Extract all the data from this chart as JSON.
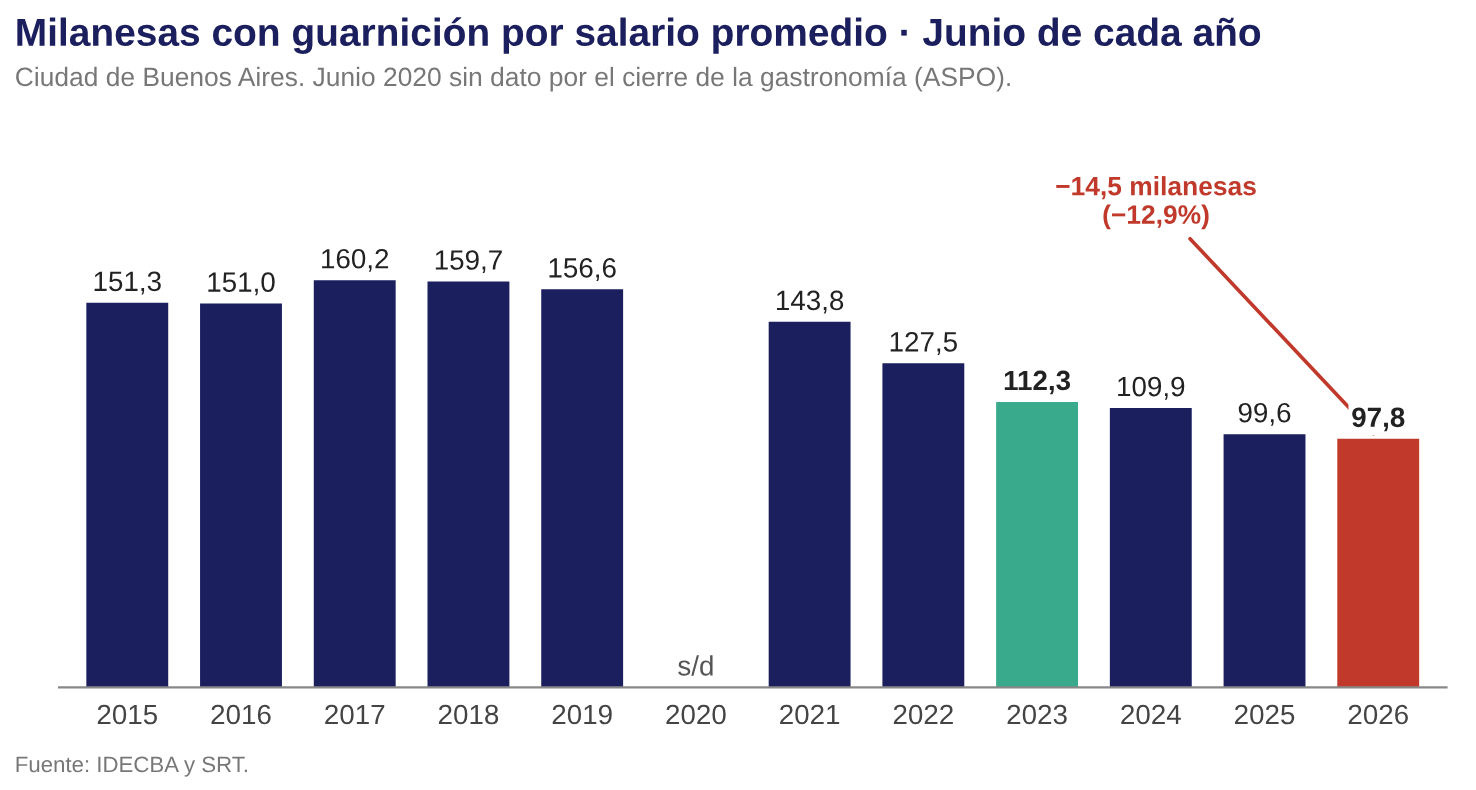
{
  "chart_data": {
    "type": "bar",
    "title": "Milanesas con guarnición por salario promedio · Junio de cada año",
    "subtitle": "Ciudad de Buenos Aires. Junio 2020 sin dato por el cierre de la gastronomía (ASPO).",
    "categories": [
      "2015",
      "2016",
      "2017",
      "2018",
      "2019",
      "2020",
      "2021",
      "2022",
      "2023",
      "2024",
      "2025",
      "2026"
    ],
    "values": [
      151.3,
      151.0,
      160.2,
      159.7,
      156.6,
      null,
      143.8,
      127.5,
      112.3,
      109.9,
      99.6,
      97.8
    ],
    "value_labels": [
      "151,3",
      "151,0",
      "160,2",
      "159,7",
      "156,6",
      "s/d",
      "143,8",
      "127,5",
      "112,3",
      "109,9",
      "99,6",
      "97,8"
    ],
    "colors": [
      "#1b1f5e",
      "#1b1f5e",
      "#1b1f5e",
      "#1b1f5e",
      "#1b1f5e",
      "#1b1f5e",
      "#1b1f5e",
      "#1b1f5e",
      "#3aaa8c",
      "#1b1f5e",
      "#1b1f5e",
      "#c0392b"
    ],
    "annotations": [
      {
        "text": "−14,5 milanesas\n(−12,9%)",
        "x": "2026",
        "y": 97.8
      },
      "Fuente: IDECBA y SRT."
    ],
    "grid": false,
    "legend": false
  }
}
